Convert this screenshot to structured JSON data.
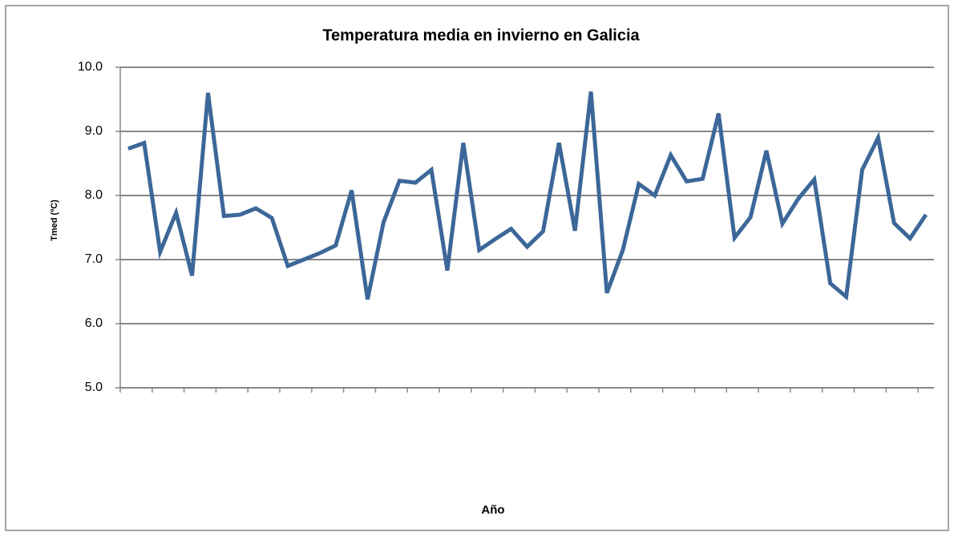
{
  "chart_data": {
    "type": "line",
    "title": "Temperatura media en invierno en Galicia",
    "xlabel": "Año",
    "ylabel": "Tmed (ºC)",
    "categories": [
      null,
      null,
      null,
      null,
      null,
      null,
      null,
      null,
      null,
      null,
      null,
      null,
      null,
      null,
      null,
      null,
      null,
      null,
      null,
      null,
      null,
      null,
      null,
      null,
      null,
      null,
      null,
      null,
      null,
      null,
      null,
      null,
      null,
      null,
      null,
      null,
      null,
      null,
      null,
      null,
      null,
      null,
      null,
      null,
      null,
      null,
      null,
      null,
      null,
      null,
      null
    ],
    "series": [
      {
        "name": "Tmed",
        "color": "#3c6798",
        "values": [
          8.73,
          8.82,
          7.12,
          7.73,
          6.75,
          9.6,
          7.68,
          7.7,
          7.8,
          7.65,
          6.9,
          7.0,
          7.1,
          7.22,
          8.08,
          6.38,
          7.58,
          8.23,
          8.2,
          8.4,
          6.83,
          8.82,
          7.15,
          7.32,
          7.48,
          7.2,
          7.44,
          8.82,
          7.45,
          9.62,
          6.48,
          7.15,
          8.18,
          8.0,
          8.63,
          8.22,
          8.26,
          9.28,
          7.34,
          7.66,
          8.7,
          7.56,
          7.95,
          8.25,
          6.63,
          6.42,
          8.4,
          8.9,
          7.57,
          7.33,
          7.7
        ]
      }
    ],
    "ylim": [
      5,
      10
    ],
    "yticks": [
      {
        "value": 5,
        "label": "5.0"
      },
      {
        "value": 6,
        "label": "6.0"
      },
      {
        "value": 7,
        "label": "7.0"
      },
      {
        "value": 8,
        "label": "8.0"
      },
      {
        "value": 9,
        "label": "9.0"
      },
      {
        "value": 10,
        "label": "10.0"
      }
    ],
    "grid": true
  }
}
